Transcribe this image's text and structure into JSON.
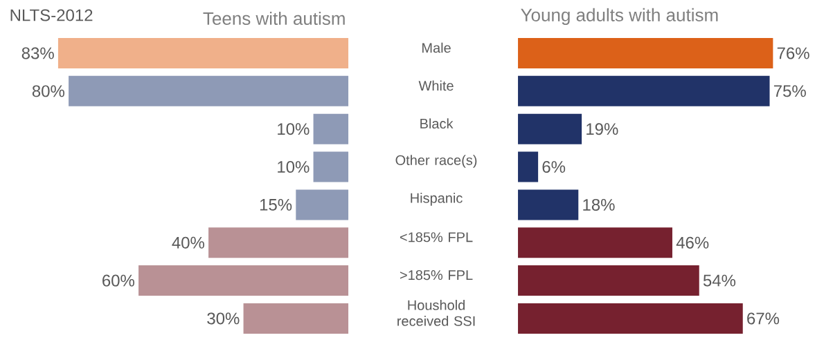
{
  "chart_data": [
    {
      "type": "bar",
      "orientation": "horizontal",
      "title": "Teens with autism",
      "annotations": [
        "NLTS-2012"
      ],
      "categories": [
        "Male",
        "White",
        "Black",
        "Other race(s)",
        "Hispanic",
        "<185% FPL",
        ">185% FPL",
        "Houshold received SSI"
      ],
      "values": [
        83,
        80,
        10,
        10,
        15,
        40,
        60,
        30
      ],
      "value_labels": [
        "83%",
        "80%",
        "10%",
        "10%",
        "15%",
        "40%",
        "60%",
        "30%"
      ],
      "colors": [
        "#f0b08a",
        "#8e9ab6",
        "#8e9ab6",
        "#8e9ab6",
        "#8e9ab6",
        "#b99195",
        "#b99195",
        "#b99195"
      ],
      "tick_labels": "y"
    },
    {
      "type": "bar",
      "orientation": "horizontal",
      "title": "Young adults with autism",
      "categories": [
        null,
        null,
        null,
        null,
        null,
        null,
        null,
        null
      ],
      "values": [
        76,
        75,
        19,
        6,
        18,
        46,
        54,
        67
      ],
      "value_labels": [
        "76%",
        "75%",
        "19%",
        "6%",
        "18%",
        "46%",
        "54%",
        "67%"
      ],
      "colors": [
        "#dc6119",
        "#213368",
        "#213368",
        "#213368",
        "#213368",
        "#76212f",
        "#76212f",
        "#76212f"
      ],
      "tick_labels": false
    }
  ]
}
